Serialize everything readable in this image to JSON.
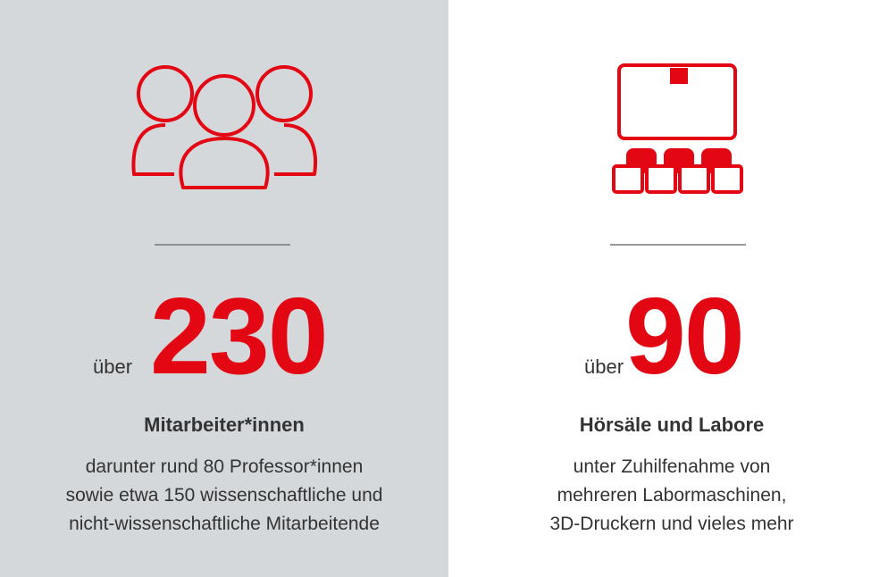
{
  "panels": [
    {
      "prefix": "über",
      "number": 230,
      "title": "Mitarbeiter*innen",
      "description": [
        "darunter rund 80 Professor*innen",
        "sowie etwa 150 wissenschaftliche und",
        "nicht-wissenschaftliche Mitarbeitende"
      ]
    },
    {
      "prefix": "über",
      "number": 90,
      "title": "Hörsäle und Labore",
      "description": [
        "unter Zuhilfenahme von",
        "mehreren Labormaschinen,",
        "3D-Druckern und vieles mehr"
      ]
    }
  ]
}
